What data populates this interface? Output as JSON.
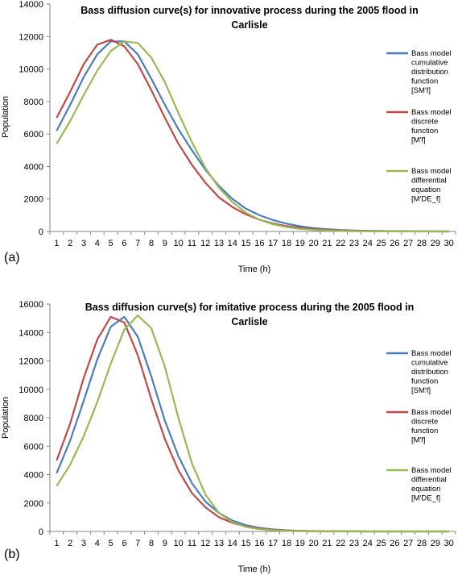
{
  "chart_data": [
    {
      "type": "line",
      "panel_label": "(a)",
      "title_lines": [
        "Bass diffusion curve(s) for innovative process during the 2005 flood in",
        "Carlisle"
      ],
      "xlabel": "Time (h)",
      "ylabel": "Population",
      "x": [
        1,
        2,
        3,
        4,
        5,
        6,
        7,
        8,
        9,
        10,
        11,
        12,
        13,
        14,
        15,
        16,
        17,
        18,
        19,
        20,
        21,
        22,
        23,
        24,
        25,
        26,
        27,
        28,
        29,
        30
      ],
      "ylim": [
        0,
        14000
      ],
      "ytick_step": 2000,
      "yticks": [
        "0",
        "2000",
        "4000",
        "6000",
        "8000",
        "10000",
        "12000",
        "14000"
      ],
      "legend_position": "right",
      "series": [
        {
          "name_lines": [
            "Bass model",
            "cumulative",
            "distribution",
            "function",
            "[SM'f]"
          ],
          "color": "#4a7ebb",
          "values": [
            6200,
            7800,
            9500,
            10900,
            11700,
            11700,
            10900,
            9400,
            7800,
            6300,
            5000,
            3800,
            2800,
            2000,
            1400,
            1000,
            700,
            480,
            320,
            210,
            140,
            90,
            60,
            40,
            25,
            15,
            10,
            6,
            4,
            2
          ]
        },
        {
          "name_lines": [
            "Bass model",
            "discrete",
            "function",
            "[M'f]"
          ],
          "color": "#be4b48",
          "values": [
            7000,
            8600,
            10300,
            11500,
            11800,
            11400,
            10300,
            8700,
            7000,
            5400,
            4100,
            3000,
            2100,
            1500,
            1050,
            720,
            490,
            330,
            220,
            145,
            95,
            60,
            40,
            25,
            15,
            10,
            6,
            4,
            2,
            1
          ]
        },
        {
          "name_lines": [
            "Bass model",
            "differential",
            "equation",
            "[M'DE_f]"
          ],
          "color": "#98b954",
          "values": [
            5400,
            6800,
            8400,
            9900,
            11100,
            11700,
            11600,
            10700,
            9200,
            7300,
            5500,
            3900,
            2700,
            1800,
            1150,
            720,
            440,
            270,
            160,
            95,
            55,
            32,
            18,
            10,
            6,
            3,
            2,
            1,
            0,
            0
          ]
        }
      ]
    },
    {
      "type": "line",
      "panel_label": "(b)",
      "title_lines": [
        "Bass diffusion curve(s) for imitative process during the 2005 flood in",
        "Carlisle"
      ],
      "xlabel": "Time (h)",
      "ylabel": "Population",
      "x": [
        1,
        2,
        3,
        4,
        5,
        6,
        7,
        8,
        9,
        10,
        11,
        12,
        13,
        14,
        15,
        16,
        17,
        18,
        19,
        20,
        21,
        22,
        23,
        24,
        25,
        26,
        27,
        28,
        29,
        30
      ],
      "ylim": [
        0,
        16000
      ],
      "ytick_step": 2000,
      "yticks": [
        "0",
        "2000",
        "4000",
        "6000",
        "8000",
        "10000",
        "12000",
        "14000",
        "16000"
      ],
      "legend_position": "right",
      "series": [
        {
          "name_lines": [
            "Bass model",
            "cumulative",
            "distribution",
            "function",
            "[SM'f]"
          ],
          "color": "#4a7ebb",
          "values": [
            4100,
            6400,
            9200,
            12100,
            14400,
            15100,
            13700,
            10900,
            7800,
            5300,
            3400,
            2100,
            1300,
            760,
            440,
            250,
            140,
            80,
            45,
            25,
            14,
            8,
            4,
            2,
            1,
            0,
            0,
            0,
            0,
            0
          ]
        },
        {
          "name_lines": [
            "Bass model",
            "discrete",
            "function",
            "[M'f]"
          ],
          "color": "#be4b48",
          "values": [
            5000,
            7600,
            10800,
            13500,
            15100,
            14700,
            12400,
            9300,
            6500,
            4300,
            2700,
            1700,
            1000,
            600,
            350,
            200,
            110,
            60,
            35,
            20,
            11,
            6,
            3,
            2,
            1,
            0,
            0,
            0,
            0,
            0
          ]
        },
        {
          "name_lines": [
            "Bass model",
            "differential",
            "equation",
            "[M'DE_f]"
          ],
          "color": "#98b954",
          "values": [
            3200,
            4700,
            6700,
            9100,
            11800,
            14200,
            15200,
            14300,
            11600,
            8000,
            4800,
            2600,
            1300,
            650,
            320,
            160,
            80,
            40,
            20,
            10,
            5,
            2,
            1,
            0,
            0,
            0,
            0,
            0,
            0,
            0
          ]
        }
      ]
    }
  ]
}
